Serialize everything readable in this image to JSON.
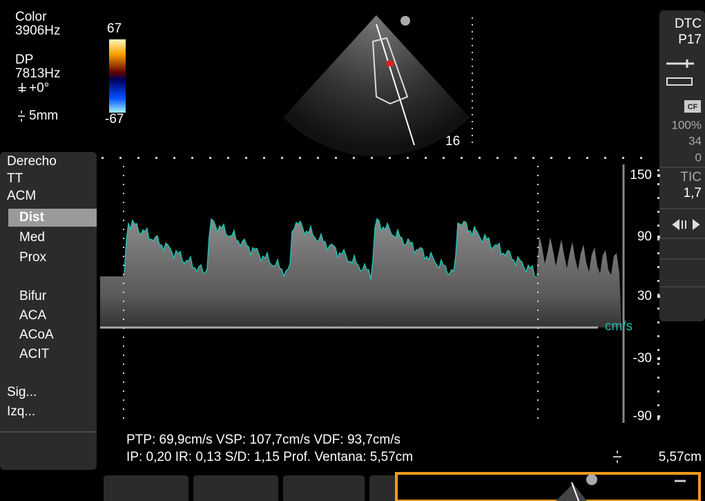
{
  "header": {
    "mode": "Color",
    "color_freq": "3906Hz",
    "doppler": "DP",
    "doppler_freq": "7813Hz",
    "angle": "+0°",
    "gate": "5mm"
  },
  "color_scale": {
    "max": "67",
    "min": "-67"
  },
  "image": {
    "depth": "16"
  },
  "side_panel": {
    "preset": "DTC",
    "probe": "P17",
    "cf": "CF",
    "power": "100%",
    "gain": "34",
    "filter": "0",
    "tic_label": "TIC",
    "tic_value": "1,7"
  },
  "menu": [
    "Derecho",
    "TT",
    "ACM",
    "Dist",
    "Med",
    "Prox",
    "Bifur",
    "ACA",
    "ACoA",
    "ACIT",
    "Sig...",
    "Izq..."
  ],
  "velocity_scale": {
    "ticks": [
      "150",
      "90",
      "30",
      "-30",
      "-90"
    ],
    "unit": "cm/s"
  },
  "measurements": {
    "line1": "PTP: 69,9cm/s  VSP: 107,7cm/s  VDF: 93,7cm/s",
    "line2": "IP: 0,20 IR: 0,13 S/D: 1,15 Prof. Ventana: 5,57cm"
  },
  "window_depth": "5,57cm"
}
